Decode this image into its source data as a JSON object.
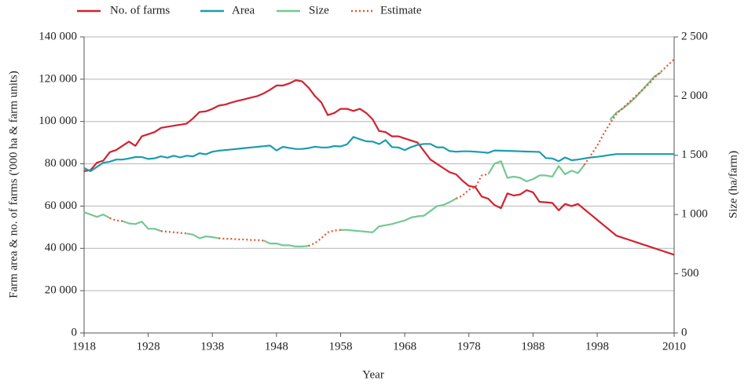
{
  "chart_data": {
    "type": "line",
    "x_label": "Year",
    "y_label": "Farm area & no. of farms ('000 ha & farm units)",
    "y2_label": "Size (ha/farm)",
    "x": [
      1918,
      1919,
      1920,
      1921,
      1922,
      1923,
      1924,
      1925,
      1926,
      1927,
      1928,
      1929,
      1930,
      1931,
      1932,
      1933,
      1934,
      1935,
      1936,
      1937,
      1938,
      1939,
      1940,
      1941,
      1942,
      1943,
      1944,
      1945,
      1946,
      1947,
      1948,
      1949,
      1950,
      1951,
      1952,
      1953,
      1954,
      1955,
      1956,
      1957,
      1958,
      1959,
      1960,
      1961,
      1962,
      1963,
      1964,
      1965,
      1966,
      1967,
      1968,
      1969,
      1970,
      1971,
      1972,
      1973,
      1974,
      1975,
      1976,
      1977,
      1978,
      1979,
      1980,
      1981,
      1982,
      1983,
      1984,
      1985,
      1986,
      1987,
      1988,
      1989,
      1990,
      1991,
      1992,
      1993,
      1994,
      1995,
      1996,
      1997,
      1998,
      1999,
      2000,
      2001,
      2002,
      2003,
      2004,
      2005,
      2006,
      2007,
      2008,
      2009,
      2010
    ],
    "xlim": [
      1918,
      2010
    ],
    "xticks": [
      1918,
      1928,
      1938,
      1948,
      1958,
      1968,
      1978,
      1988,
      1998,
      2010
    ],
    "ylim": [
      0,
      140000
    ],
    "yticks": [
      0,
      {
        "value": 20000,
        "label": "20 000"
      },
      {
        "value": 40000,
        "label": "40 000"
      },
      {
        "value": 60000,
        "label": "60 000"
      },
      {
        "value": 80000,
        "label": "80 000"
      },
      {
        "value": 100000,
        "label": "100 000"
      },
      {
        "value": 120000,
        "label": "120 000"
      },
      {
        "value": 140000,
        "label": "140 000"
      }
    ],
    "y2lim": [
      0,
      2500
    ],
    "y2ticks": [
      0,
      500,
      {
        "value": 1000,
        "label": "1 000"
      },
      {
        "value": 1500,
        "label": "1 500"
      },
      {
        "value": 2000,
        "label": "2 000"
      },
      {
        "value": 2500,
        "label": "2 500"
      }
    ],
    "grid": true,
    "legend": "top",
    "series": [
      {
        "name": "No. of farms",
        "color": "#d02330",
        "style": "solid",
        "values": [
          76500,
          77000,
          80500,
          81500,
          85500,
          86500,
          88500,
          90500,
          88500,
          93000,
          94000,
          95000,
          97000,
          97500,
          98000,
          98500,
          99000,
          101500,
          104500,
          104800,
          106000,
          107500,
          108000,
          109000,
          109800,
          110500,
          111300,
          112000,
          113300,
          115000,
          117000,
          117000,
          118000,
          119500,
          119000,
          116000,
          112000,
          109000,
          103000,
          104000,
          106000,
          106000,
          105000,
          106000,
          104000,
          101000,
          95500,
          95000,
          93000,
          93000,
          92000,
          91000,
          90000,
          86000,
          82000,
          80000,
          78000,
          76000,
          75000,
          72000,
          69500,
          69000,
          64500,
          63500,
          60500,
          59000,
          66000,
          65000,
          65500,
          67500,
          66500,
          62000,
          61800,
          61500,
          58000,
          61000,
          60000,
          61000,
          58500,
          56000,
          53500,
          51000,
          48500,
          46000,
          45000,
          44000,
          43000,
          42000,
          41000,
          40000,
          39000,
          38000,
          37000
        ]
      },
      {
        "name": "Area",
        "color": "#1b9cb0",
        "style": "solid",
        "values": [
          78000,
          76500,
          78500,
          80500,
          81000,
          82000,
          82000,
          82500,
          83200,
          83200,
          82300,
          82600,
          83500,
          82900,
          83800,
          83000,
          83800,
          83500,
          85000,
          84500,
          85700,
          86200,
          86500,
          86800,
          87100,
          87400,
          87700,
          88000,
          88300,
          88600,
          86300,
          88000,
          87500,
          87000,
          87000,
          87400,
          88100,
          87700,
          87700,
          88400,
          88200,
          89200,
          92700,
          91600,
          90600,
          90500,
          89300,
          91200,
          87900,
          87700,
          86500,
          87900,
          88900,
          89400,
          89400,
          87800,
          87800,
          86000,
          85700,
          85900,
          85900,
          85700,
          85500,
          85200,
          86300,
          86200,
          86100,
          86000,
          85900,
          85800,
          85700,
          85600,
          82700,
          82500,
          81200,
          83000,
          81700,
          82000,
          82500,
          83000,
          83300,
          83700,
          84200,
          84600,
          84600,
          84600,
          84600,
          84600,
          84600,
          84600,
          84600,
          84600,
          84600
        ]
      },
      {
        "name": "Size",
        "color": "#74c892",
        "style": "solid",
        "axis": "y2",
        "values": [
          1020,
          1000,
          980,
          1000,
          970,
          null,
          945,
          925,
          920,
          940,
          880,
          880,
          860,
          null,
          null,
          null,
          840,
          830,
          800,
          815,
          810,
          800,
          null,
          null,
          null,
          null,
          null,
          null,
          780,
          755,
          755,
          740,
          740,
          730,
          730,
          735,
          null,
          null,
          null,
          null,
          870,
          870,
          865,
          860,
          855,
          850,
          900,
          910,
          920,
          935,
          950,
          975,
          985,
          990,
          1030,
          1070,
          1080,
          1105,
          1135,
          null,
          null,
          null,
          null,
          1340,
          1430,
          1450,
          1310,
          1320,
          1310,
          1280,
          1300,
          1330,
          1330,
          1320,
          1410,
          1340,
          1370,
          1350,
          1420,
          null,
          null,
          null,
          1800,
          1860,
          1895,
          1940,
          1990,
          2050,
          2110,
          2170,
          2200,
          null,
          null
        ]
      },
      {
        "name": "Estimate",
        "color": "#e8532b",
        "style": "dotted",
        "axis": "y2",
        "values": [
          null,
          null,
          null,
          null,
          970,
          950,
          945,
          null,
          null,
          null,
          null,
          null,
          860,
          855,
          850,
          845,
          840,
          null,
          null,
          null,
          null,
          800,
          795,
          795,
          790,
          790,
          785,
          785,
          780,
          null,
          null,
          null,
          null,
          null,
          null,
          735,
          760,
          800,
          850,
          865,
          870,
          null,
          null,
          null,
          null,
          null,
          null,
          null,
          null,
          null,
          null,
          null,
          null,
          null,
          null,
          null,
          null,
          null,
          1135,
          1160,
          1210,
          1230,
          1330,
          1340,
          null,
          null,
          null,
          null,
          null,
          null,
          null,
          null,
          null,
          null,
          null,
          null,
          null,
          null,
          1420,
          1500,
          1580,
          1680,
          1770,
          1850,
          1900,
          1950,
          2000,
          2050,
          2100,
          2160,
          2210,
          2260,
          2310
        ]
      }
    ]
  }
}
